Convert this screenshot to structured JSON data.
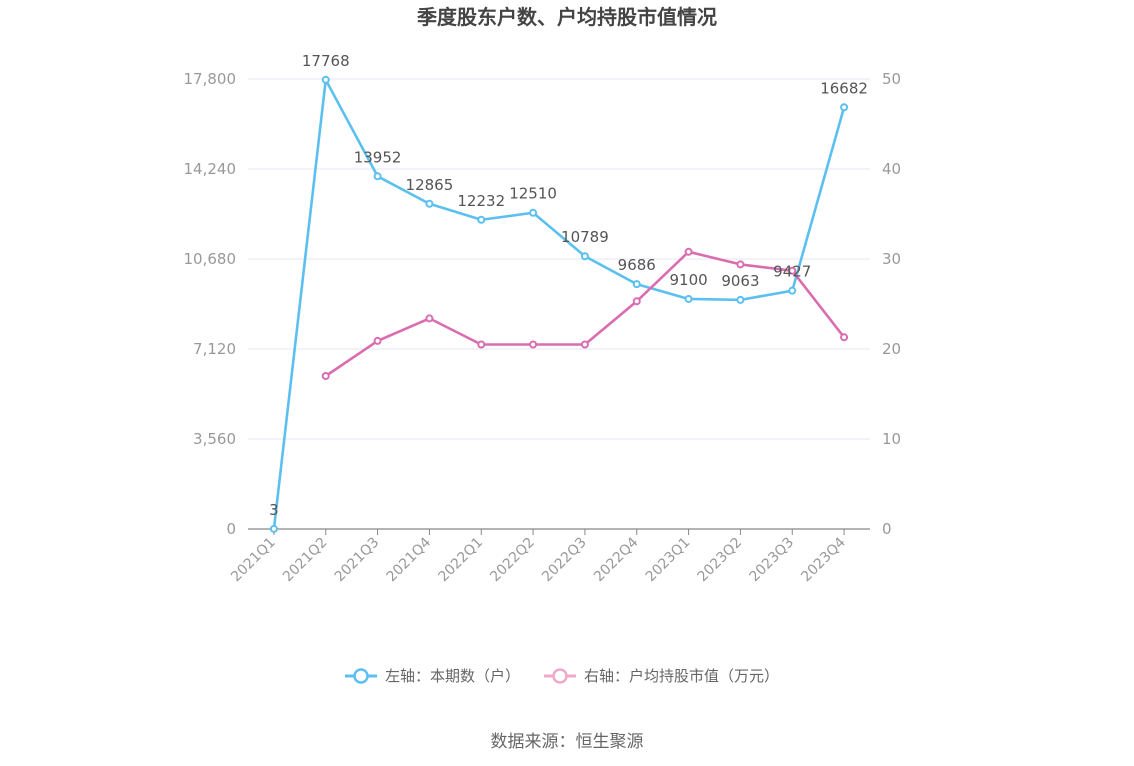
{
  "chart_data": {
    "type": "line",
    "title": "季度股东户数、户均持股市值情况",
    "categories": [
      "2021Q1",
      "2021Q2",
      "2021Q3",
      "2021Q4",
      "2022Q1",
      "2022Q2",
      "2022Q3",
      "2022Q4",
      "2023Q1",
      "2023Q2",
      "2023Q3",
      "2023Q4"
    ],
    "left_axis": {
      "ylim": [
        0,
        17800
      ],
      "ticks": [
        "0",
        "3,560",
        "7,120",
        "10,680",
        "14,240",
        "17,800"
      ]
    },
    "right_axis": {
      "ylim": [
        0,
        50
      ],
      "ticks": [
        "0",
        "10",
        "20",
        "30",
        "40",
        "50"
      ]
    },
    "series": [
      {
        "name": "左轴：本期数（户）",
        "axis": "left",
        "color": "#5bc0f0",
        "values": [
          3,
          17768,
          13952,
          12865,
          12232,
          12510,
          10789,
          9686,
          9100,
          9063,
          9427,
          16682
        ],
        "labels": [
          "3",
          "17768",
          "13952",
          "12865",
          "12232",
          "12510",
          "10789",
          "9686",
          "9100",
          "9063",
          "9427",
          "16682"
        ]
      },
      {
        "name": "右轴：户均持股市值（万元）",
        "axis": "right",
        "color": "#d96db0",
        "values": [
          null,
          17.0,
          20.9,
          23.4,
          20.5,
          20.5,
          20.5,
          25.3,
          30.8,
          29.4,
          28.7,
          21.3
        ]
      }
    ],
    "grid": true,
    "legend_position": "bottom"
  },
  "source": "数据来源：恒生聚源"
}
